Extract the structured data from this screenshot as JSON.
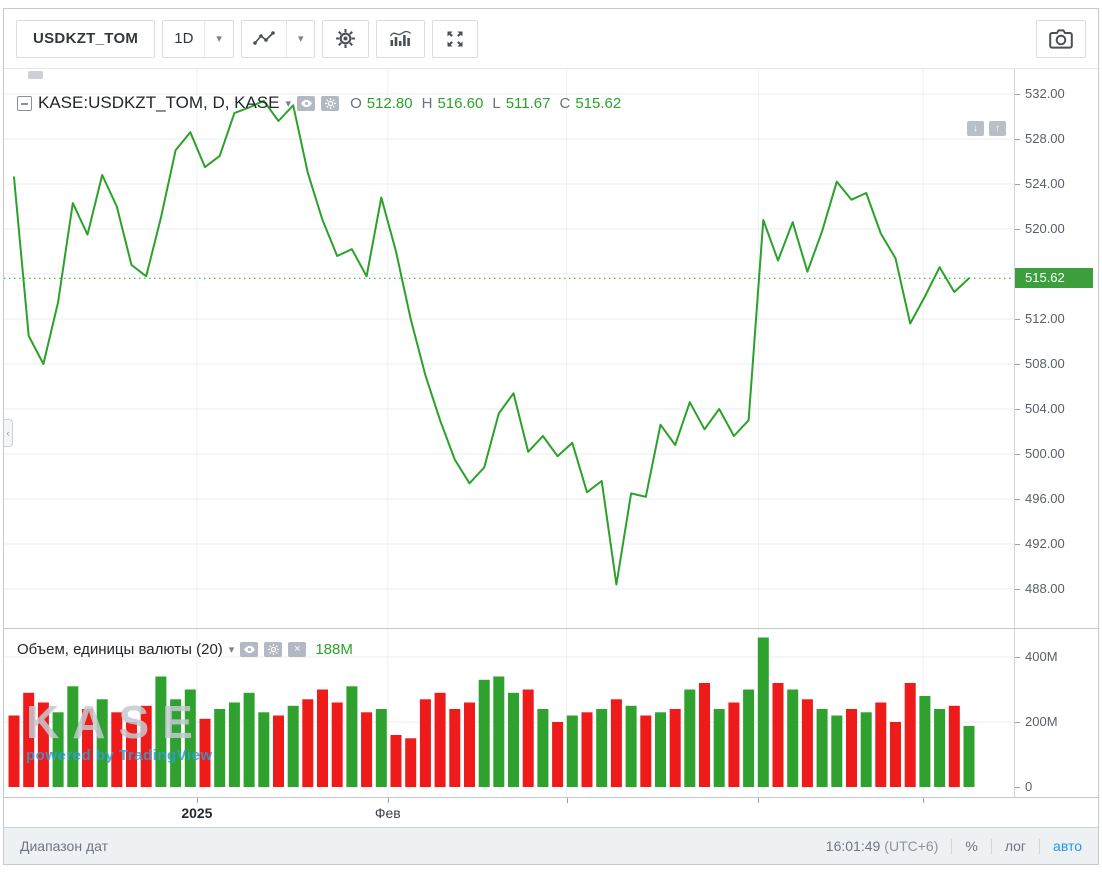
{
  "toolbar": {
    "symbol": "USDKZT_TOM",
    "interval": "1D"
  },
  "price_pane": {
    "legend": {
      "title": "KASE:USDKZT_TOM, D, KASE",
      "ohlc": [
        {
          "label": "O",
          "value": "512.80"
        },
        {
          "label": "H",
          "value": "516.60"
        },
        {
          "label": "L",
          "value": "511.67"
        },
        {
          "label": "C",
          "value": "515.62"
        }
      ]
    },
    "last_price_label": "515.62",
    "axis_ticks": [
      "532.00",
      "528.00",
      "524.00",
      "520.00",
      "512.00",
      "508.00",
      "504.00",
      "500.00",
      "496.00",
      "492.00",
      "488.00"
    ]
  },
  "volume_pane": {
    "legend_title": "Объем, единицы валюты (20)",
    "legend_value": "188M",
    "axis_ticks": [
      {
        "text": "400M",
        "value": 400
      },
      {
        "text": "200M",
        "value": 200
      },
      {
        "text": "0",
        "value": 0
      }
    ]
  },
  "watermark": {
    "title": "KASE",
    "subtitle": "powered by TradingView"
  },
  "status_bar": {
    "range_label": "Диапазон дат",
    "clock": "16:01:49",
    "timezone": "(UTC+6)",
    "percent": "%",
    "log": "лог",
    "auto": "авто"
  },
  "colors": {
    "up": "#2aa22a",
    "up_bar": "#2fa12f",
    "down_bar": "#ef1a1a",
    "label_bg": "#3c9e3c",
    "accent_blue": "#2196f3"
  },
  "chart_data": {
    "type": "line",
    "symbol": "KASE:USDKZT_TOM",
    "interval": "D",
    "exchange": "KASE",
    "ohlc": {
      "open": 512.8,
      "high": 516.6,
      "low": 511.67,
      "close": 515.62
    },
    "last_price": 515.62,
    "price_axis": {
      "min": 488,
      "max": 532,
      "step": 4
    },
    "prices": [
      524.6,
      510.5,
      508.0,
      513.5,
      522.3,
      519.5,
      524.8,
      522.0,
      516.8,
      515.8,
      521.0,
      527.0,
      528.6,
      525.5,
      526.5,
      530.3,
      530.8,
      531.4,
      529.6,
      531.0,
      525.0,
      520.8,
      517.6,
      518.2,
      515.8,
      522.8,
      518.0,
      512.0,
      507.0,
      503.0,
      499.5,
      497.4,
      498.8,
      503.6,
      505.4,
      500.2,
      501.6,
      499.8,
      501.0,
      496.6,
      497.6,
      488.4,
      496.5,
      496.2,
      502.6,
      500.8,
      504.6,
      502.2,
      504.0,
      501.6,
      503.0,
      520.8,
      517.2,
      520.6,
      516.2,
      519.8,
      524.2,
      522.6,
      523.2,
      519.6,
      517.4,
      511.6,
      514.0,
      516.6,
      514.4,
      515.62
    ],
    "volume": {
      "unit": "M",
      "axis_max": 400,
      "ma_label": "188M",
      "values": [
        220,
        290,
        260,
        230,
        310,
        240,
        270,
        230,
        200,
        250,
        340,
        270,
        300,
        210,
        240,
        260,
        290,
        230,
        220,
        250,
        270,
        300,
        260,
        310,
        230,
        240,
        160,
        150,
        270,
        290,
        240,
        260,
        330,
        340,
        290,
        300,
        240,
        200,
        220,
        230,
        240,
        270,
        250,
        220,
        230,
        240,
        300,
        320,
        240,
        260,
        300,
        460,
        320,
        300,
        270,
        240,
        220,
        240,
        230,
        260,
        200,
        320,
        280,
        240,
        250,
        188
      ]
    },
    "x_axis": {
      "labels": [
        {
          "text": "2025",
          "pos": 0.191,
          "bold": true
        },
        {
          "text": "Фев",
          "pos": 0.38,
          "bold": false
        }
      ],
      "ticks": [
        0.191,
        0.38,
        0.557,
        0.747,
        0.91
      ]
    }
  }
}
